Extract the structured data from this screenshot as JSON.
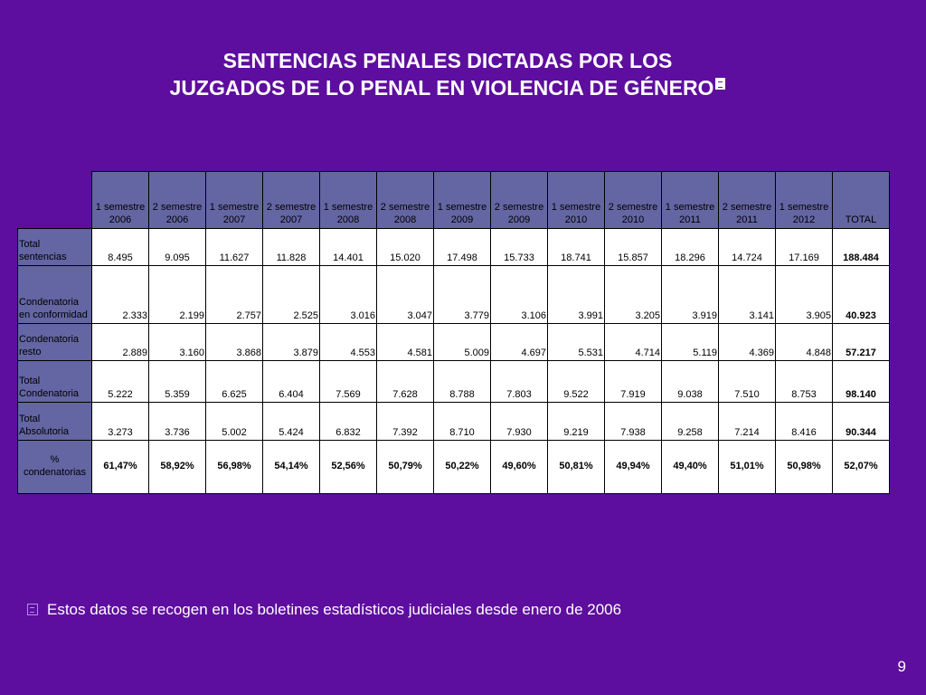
{
  "title": {
    "line1": "SENTENCIAS PENALES DICTADAS POR LOS",
    "line2": "JUZGADOS DE LO PENAL EN VIOLENCIA DE GÉNERO"
  },
  "table": {
    "columns": [
      {
        "l1": "1 semestre",
        "l2": "2006"
      },
      {
        "l1": "2 semestre",
        "l2": "2006"
      },
      {
        "l1": "1 semestre",
        "l2": "2007"
      },
      {
        "l1": "2 semestre",
        "l2": "2007"
      },
      {
        "l1": "1 semestre",
        "l2": "2008"
      },
      {
        "l1": "2 semestre",
        "l2": "2008"
      },
      {
        "l1": "1 semestre",
        "l2": "2009"
      },
      {
        "l1": "2 semestre",
        "l2": "2009"
      },
      {
        "l1": "1 semestre",
        "l2": "2010"
      },
      {
        "l1": "2 semestre",
        "l2": "2010"
      },
      {
        "l1": "1 semestre",
        "l2": "2011"
      },
      {
        "l1": "2 semestre",
        "l2": "2011"
      },
      {
        "l1": "1 semestre",
        "l2": "2012"
      }
    ],
    "total_header": "TOTAL",
    "rows": [
      {
        "l1": "Total",
        "l2": "sentencias",
        "values": [
          "8.495",
          "9.095",
          "11.627",
          "11.828",
          "14.401",
          "15.020",
          "17.498",
          "15.733",
          "18.741",
          "15.857",
          "18.296",
          "14.724",
          "17.169"
        ],
        "total": "188.484"
      },
      {
        "l1": "Condenatoria",
        "l2": "en conformidad",
        "values": [
          "2.333",
          "2.199",
          "2.757",
          "2.525",
          "3.016",
          "3.047",
          "3.779",
          "3.106",
          "3.991",
          "3.205",
          "3.919",
          "3.141",
          "3.905"
        ],
        "total": "40.923"
      },
      {
        "l1": "Condenatoria",
        "l2": "resto",
        "values": [
          "2.889",
          "3.160",
          "3.868",
          "3.879",
          "4.553",
          "4.581",
          "5.009",
          "4.697",
          "5.531",
          "4.714",
          "5.119",
          "4.369",
          "4.848"
        ],
        "total": "57.217"
      },
      {
        "l1": "Total",
        "l2": "Condenatoria",
        "values": [
          "5.222",
          "5.359",
          "6.625",
          "6.404",
          "7.569",
          "7.628",
          "8.788",
          "7.803",
          "9.522",
          "7.919",
          "9.038",
          "7.510",
          "8.753"
        ],
        "total": "98.140"
      },
      {
        "l1": "Total",
        "l2": "Absolutoria",
        "values": [
          "3.273",
          "3.736",
          "5.002",
          "5.424",
          "6.832",
          "7.392",
          "8.710",
          "7.930",
          "9.219",
          "7.938",
          "9.258",
          "7.214",
          "8.416"
        ],
        "total": "90.344"
      },
      {
        "l1": "%",
        "l2": "condenatorias",
        "values": [
          "61,47%",
          "58,92%",
          "56,98%",
          "54,14%",
          "52,56%",
          "50,79%",
          "50,22%",
          "49,60%",
          "50,81%",
          "49,94%",
          "49,40%",
          "51,01%",
          "50,98%"
        ],
        "total": "52,07%"
      }
    ]
  },
  "footnote": "Estos datos se recogen en los boletines estadísticos judiciales desde enero de 2006",
  "page_number": "9",
  "colors": {
    "background": "#5e0e9e",
    "header_cell": "#6465a3",
    "data_cell": "#ffffff"
  }
}
